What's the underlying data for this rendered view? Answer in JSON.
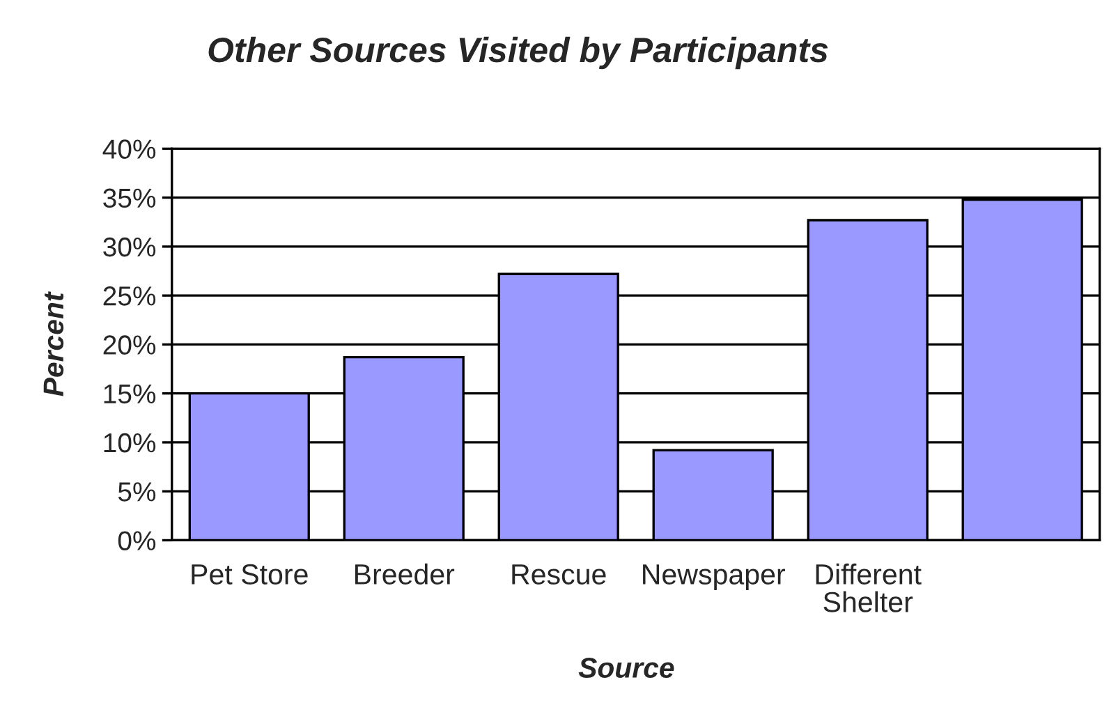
{
  "chart_data": {
    "type": "bar",
    "title": "Other Sources Visited by Participants",
    "xlabel": "Source",
    "ylabel": "Percent",
    "categories": [
      "Pet Store",
      "Breeder",
      "Rescue",
      "Newspaper",
      "Different Shelter",
      null
    ],
    "values": [
      15.0,
      18.7,
      27.2,
      9.2,
      32.7,
      34.8
    ],
    "color": "#9999ff",
    "ylim": [
      0,
      40
    ],
    "yticks": [
      {
        "value": 0,
        "label": "0%"
      },
      {
        "value": 5,
        "label": "5%"
      },
      {
        "value": 10,
        "label": "10%"
      },
      {
        "value": 15,
        "label": "15%"
      },
      {
        "value": 20,
        "label": "20%"
      },
      {
        "value": 25,
        "label": "25%"
      },
      {
        "value": 30,
        "label": "30%"
      },
      {
        "value": 35,
        "label": "35%"
      },
      {
        "value": 40,
        "label": "40%"
      }
    ],
    "grid": "y"
  }
}
